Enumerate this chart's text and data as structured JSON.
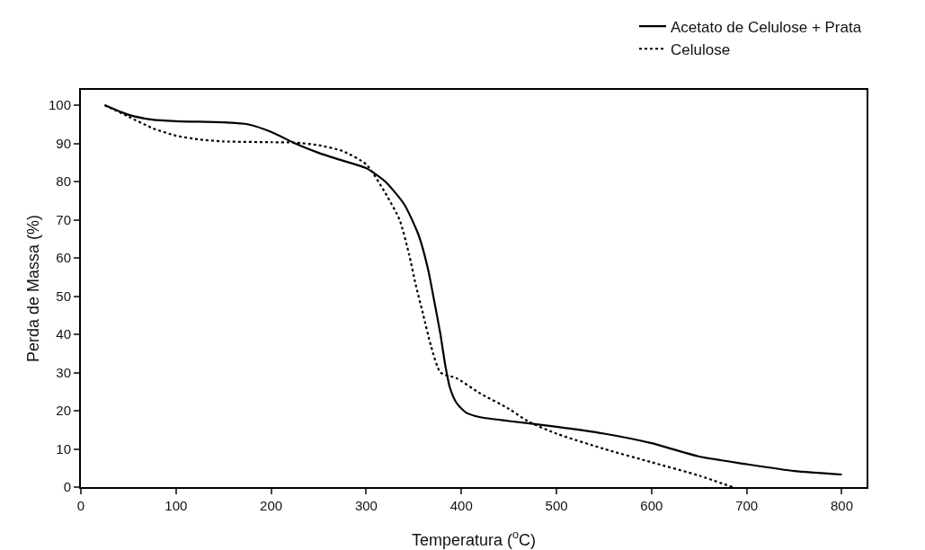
{
  "chart_data": {
    "type": "line",
    "xlabel": "Temperatura ($^{o}$C)",
    "ylabel": "Perda de Massa (%)",
    "xlim": [
      0,
      826
    ],
    "ylim": [
      0,
      104
    ],
    "xticks": [
      0,
      100,
      200,
      300,
      400,
      500,
      600,
      700,
      800
    ],
    "yticks": [
      0,
      10,
      20,
      30,
      40,
      50,
      60,
      70,
      80,
      90,
      100
    ],
    "grid": false,
    "legend": "top right",
    "marker": "none",
    "series": [
      {
        "name": "Acetato de Celulose + Prata",
        "color": "#000000",
        "line_style": "solid",
        "x": [
          25,
          50,
          75,
          100,
          150,
          175,
          200,
          225,
          250,
          275,
          300,
          320,
          340,
          355,
          365,
          372,
          378,
          383,
          388,
          395,
          405,
          420,
          450,
          500,
          550,
          600,
          650,
          700,
          750,
          800
        ],
        "values": [
          100,
          97.5,
          96.2,
          95.8,
          95.5,
          95,
          93,
          90,
          87.5,
          85.5,
          83.5,
          80,
          74,
          66,
          57,
          48,
          40,
          32,
          26,
          22,
          19.5,
          18.3,
          17.3,
          15.8,
          14,
          11.5,
          8,
          6,
          4.2,
          3.3
        ]
      },
      {
        "name": "Celulose",
        "color": "#000000",
        "line_style": "dotted",
        "x": [
          25,
          50,
          75,
          100,
          125,
          150,
          200,
          225,
          250,
          275,
          300,
          320,
          335,
          345,
          352,
          360,
          368,
          378,
          395,
          420,
          450,
          470,
          500,
          550,
          600,
          650,
          685
        ],
        "values": [
          100,
          97,
          94,
          92,
          91,
          90.5,
          90.3,
          90.2,
          89.5,
          88,
          84.5,
          77,
          70,
          61,
          53,
          45,
          37,
          30,
          28.5,
          24.5,
          20.5,
          17.2,
          14,
          10,
          6.5,
          3,
          0
        ]
      }
    ]
  }
}
